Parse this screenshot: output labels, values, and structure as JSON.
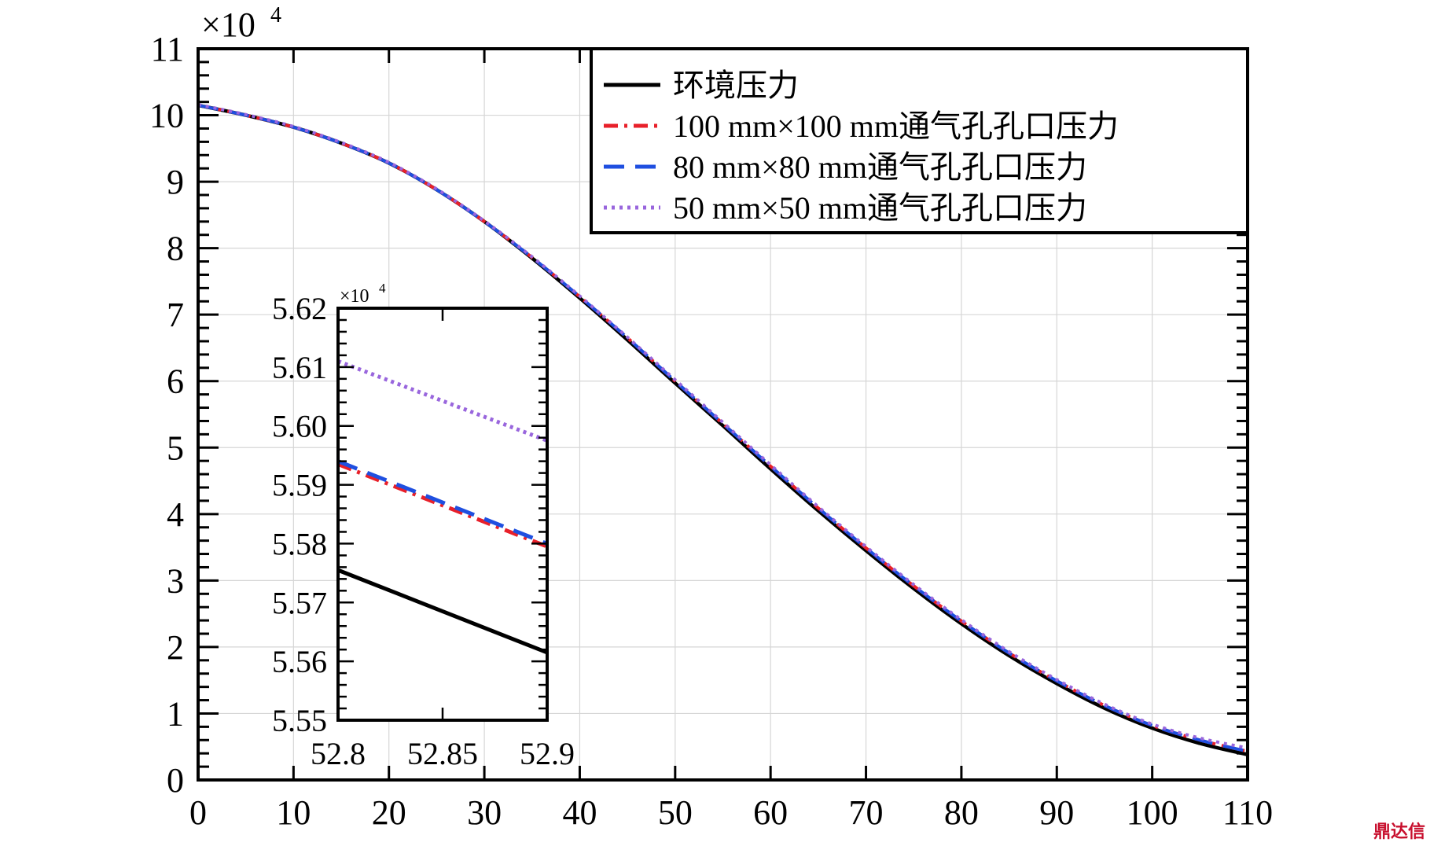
{
  "chart_data": [
    {
      "type": "line",
      "role": "main",
      "x_ticks": [
        "0",
        "10",
        "20",
        "30",
        "40",
        "50",
        "60",
        "70",
        "80",
        "90",
        "100",
        "110"
      ],
      "y_ticks": [
        "0",
        "1",
        "2",
        "3",
        "4",
        "5",
        "6",
        "7",
        "8",
        "9",
        "10",
        "11"
      ],
      "y_multiplier": "×10",
      "y_multiplier_exp": "4",
      "xlim": [
        0,
        110
      ],
      "ylim": [
        0,
        11
      ],
      "grid": true,
      "legend_position": "top-right",
      "x": [
        0,
        5,
        10,
        15,
        20,
        25,
        30,
        35,
        40,
        45,
        50,
        55,
        60,
        65,
        70,
        75,
        80,
        85,
        90,
        95,
        100,
        105,
        110
      ],
      "series": [
        {
          "name": "环境压力",
          "color": "#000000",
          "dash": "solid",
          "values": [
            10.15,
            10.0,
            9.82,
            9.58,
            9.28,
            8.88,
            8.4,
            7.85,
            7.25,
            6.62,
            5.97,
            5.33,
            4.68,
            4.05,
            3.45,
            2.88,
            2.35,
            1.87,
            1.45,
            1.08,
            0.78,
            0.55,
            0.38
          ]
        },
        {
          "name": "100 mm×100 mm通气孔孔口压力",
          "color": "#e8202a",
          "dash": "dashdot",
          "values": [
            10.15,
            10.0,
            9.82,
            9.58,
            9.28,
            8.88,
            8.4,
            7.86,
            7.27,
            6.65,
            6.0,
            5.36,
            4.72,
            4.09,
            3.49,
            2.92,
            2.39,
            1.91,
            1.49,
            1.12,
            0.82,
            0.6,
            0.43
          ]
        },
        {
          "name": "80 mm×80 mm通气孔孔口压力",
          "color": "#1f4fe0",
          "dash": "dash",
          "values": [
            10.15,
            10.0,
            9.82,
            9.58,
            9.28,
            8.88,
            8.4,
            7.86,
            7.27,
            6.65,
            6.0,
            5.36,
            4.72,
            4.09,
            3.49,
            2.92,
            2.39,
            1.91,
            1.49,
            1.12,
            0.82,
            0.6,
            0.43
          ]
        },
        {
          "name": "50 mm×50 mm通气孔孔口压力",
          "color": "#9966dd",
          "dash": "dot",
          "values": [
            10.16,
            10.01,
            9.83,
            9.59,
            9.29,
            8.89,
            8.41,
            7.87,
            7.28,
            6.66,
            6.02,
            5.38,
            4.74,
            4.11,
            3.51,
            2.94,
            2.41,
            1.93,
            1.51,
            1.14,
            0.84,
            0.63,
            0.48
          ]
        }
      ]
    },
    {
      "type": "line",
      "role": "inset",
      "x_ticks": [
        "52.8",
        "52.85",
        "52.9"
      ],
      "y_ticks": [
        "5.55",
        "5.56",
        "5.57",
        "5.58",
        "5.59",
        "5.60",
        "5.61",
        "5.62"
      ],
      "y_multiplier": "×10",
      "y_multiplier_exp": "4",
      "xlim": [
        52.8,
        52.9
      ],
      "ylim": [
        5.55,
        5.62
      ],
      "grid": false,
      "x": [
        52.8,
        52.9
      ],
      "series": [
        {
          "color": "#000000",
          "dash": "solid",
          "values": [
            5.5755,
            5.5615
          ]
        },
        {
          "color": "#e8202a",
          "dash": "dashdot",
          "values": [
            5.5935,
            5.5795
          ]
        },
        {
          "color": "#1f4fe0",
          "dash": "dash",
          "values": [
            5.594,
            5.58
          ]
        },
        {
          "color": "#9966dd",
          "dash": "dot",
          "values": [
            5.611,
            5.5975
          ]
        }
      ]
    }
  ],
  "watermark": "鼎达信"
}
